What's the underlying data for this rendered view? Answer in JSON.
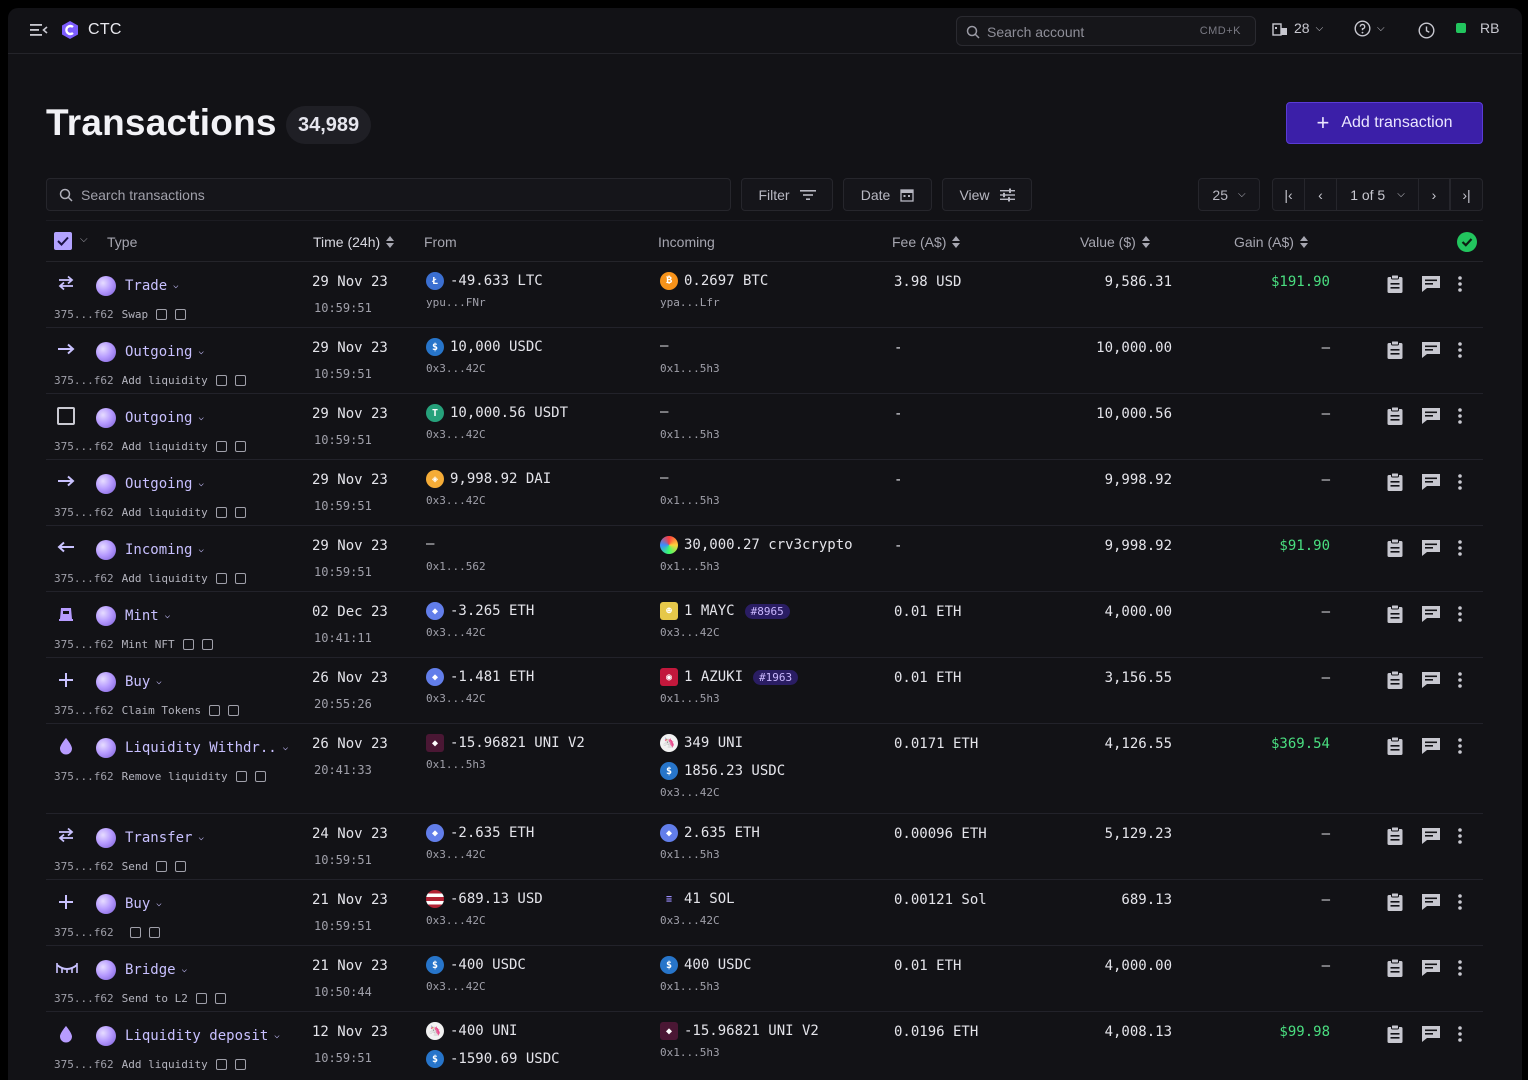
{
  "app": {
    "title": "CTC"
  },
  "topbar": {
    "search_placeholder": "Search account",
    "search_shortcut": "CMD+K",
    "notifications_count": "28",
    "user_initials": "RB"
  },
  "header": {
    "title": "Transactions",
    "count": "34,989",
    "add_label": "Add transaction"
  },
  "toolbar": {
    "search_placeholder": "Search transactions",
    "filter_label": "Filter",
    "date_label": "Date",
    "view_label": "View",
    "page_size": "25",
    "page_label": "1 of 5"
  },
  "columns": {
    "type": "Type",
    "time": "Time (24h)",
    "from": "From",
    "incoming": "Incoming",
    "fee": "Fee (A$)",
    "value": "Value ($)",
    "gain": "Gain (A$)"
  },
  "colors": {
    "accent": "#3b1fa8",
    "positive": "#4ade80",
    "type_text": "#c8c0ff"
  },
  "rows": [
    {
      "icon": "swap-arrows-icon",
      "type": "Trade",
      "hash": "375...f62",
      "label": "Swap",
      "date": "29 Nov 23",
      "time": "10:59:51",
      "from": [
        {
          "token": "ltc",
          "text": "-49.633 LTC"
        }
      ],
      "from_addr": "ypu...FNr",
      "incoming": [
        {
          "token": "btc",
          "text": "0.2697 BTC"
        }
      ],
      "incoming_addr": "ypa...Lfr",
      "fee": "3.98 USD",
      "value": "9,586.31",
      "gain": "$191.90",
      "gain_pos": true
    },
    {
      "icon": "arrow-right-icon",
      "type": "Outgoing",
      "hash": "375...f62",
      "label": "Add liquidity",
      "date": "29 Nov 23",
      "time": "10:59:51",
      "from": [
        {
          "token": "usdc",
          "text": "10,000 USDC"
        }
      ],
      "from_addr": "0x3...42C",
      "incoming": [
        {
          "token": "",
          "text": "–"
        }
      ],
      "incoming_addr": "0x1...5h3",
      "fee": "-",
      "value": "10,000.00",
      "gain": "–",
      "gain_pos": false
    },
    {
      "icon": "checkbox-icon",
      "type": "Outgoing",
      "hash": "375...f62",
      "label": "Add liquidity",
      "date": "29 Nov 23",
      "time": "10:59:51",
      "from": [
        {
          "token": "usdt",
          "text": "10,000.56 USDT"
        }
      ],
      "from_addr": "0x3...42C",
      "incoming": [
        {
          "token": "",
          "text": "–"
        }
      ],
      "incoming_addr": "0x1...5h3",
      "fee": "-",
      "value": "10,000.56",
      "gain": "–",
      "gain_pos": false
    },
    {
      "icon": "arrow-right-icon",
      "type": "Outgoing",
      "hash": "375...f62",
      "label": "Add liquidity",
      "date": "29 Nov 23",
      "time": "10:59:51",
      "from": [
        {
          "token": "dai",
          "text": "9,998.92 DAI"
        }
      ],
      "from_addr": "0x3...42C",
      "incoming": [
        {
          "token": "",
          "text": "–"
        }
      ],
      "incoming_addr": "0x1...5h3",
      "fee": "-",
      "value": "9,998.92",
      "gain": "–",
      "gain_pos": false
    },
    {
      "icon": "arrow-left-icon",
      "type": "Incoming",
      "hash": "375...f62",
      "label": "Add liquidity",
      "date": "29 Nov 23",
      "time": "10:59:51",
      "from": [
        {
          "token": "",
          "text": "–"
        }
      ],
      "from_addr": "0x1...562",
      "incoming": [
        {
          "token": "crv",
          "text": "30,000.27 crv3crypto"
        }
      ],
      "incoming_addr": "0x1...5h3",
      "fee": "-",
      "value": "9,998.92",
      "gain": "$91.90",
      "gain_pos": true
    },
    {
      "icon": "mint-icon",
      "type": "Mint",
      "hash": "375...f62",
      "label": "Mint NFT",
      "date": "02 Dec 23",
      "time": "10:41:11",
      "from": [
        {
          "token": "eth",
          "text": "-3.265 ETH"
        }
      ],
      "from_addr": "0x3...42C",
      "incoming": [
        {
          "token": "mayc",
          "text": "1 MAYC",
          "badge": "#8965"
        }
      ],
      "incoming_addr": "0x3...42C",
      "fee": "0.01 ETH",
      "value": "4,000.00",
      "gain": "–",
      "gain_pos": false
    },
    {
      "icon": "plus-icon",
      "type": "Buy",
      "hash": "375...f62",
      "label": "Claim Tokens",
      "date": "26 Nov 23",
      "time": "20:55:26",
      "from": [
        {
          "token": "eth",
          "text": "-1.481 ETH"
        }
      ],
      "from_addr": "0x3...42C",
      "incoming": [
        {
          "token": "azuki",
          "text": "1 AZUKI",
          "badge": "#1963"
        }
      ],
      "incoming_addr": "0x1...5h3",
      "fee": "0.01 ETH",
      "value": "3,156.55",
      "gain": "–",
      "gain_pos": false
    },
    {
      "icon": "drop-icon",
      "type": "Liquidity Withdr..",
      "hash": "375...f62",
      "label": "Remove liquidity",
      "date": "26 Nov 23",
      "time": "20:41:33",
      "from": [
        {
          "token": "univ2",
          "text": "-15.96821 UNI V2"
        }
      ],
      "from_addr": "0x1...5h3",
      "incoming": [
        {
          "token": "uni",
          "text": "349 UNI"
        },
        {
          "token": "usdc",
          "text": "1856.23 USDC"
        }
      ],
      "incoming_addr": "0x3...42C",
      "fee": "0.0171 ETH",
      "value": "4,126.55",
      "gain": "$369.54",
      "gain_pos": true
    },
    {
      "icon": "swap-arrows-icon",
      "type": "Transfer",
      "hash": "375...f62",
      "label": "Send",
      "date": "24 Nov 23",
      "time": "10:59:51",
      "from": [
        {
          "token": "eth",
          "text": "-2.635 ETH"
        }
      ],
      "from_addr": "0x3...42C",
      "incoming": [
        {
          "token": "eth",
          "text": "2.635 ETH"
        }
      ],
      "incoming_addr": "0x1...5h3",
      "fee": "0.00096 ETH",
      "value": "5,129.23",
      "gain": "–",
      "gain_pos": false
    },
    {
      "icon": "plus-icon",
      "type": "Buy",
      "hash": "375...f62",
      "label": "",
      "date": "21 Nov 23",
      "time": "10:59:51",
      "from": [
        {
          "token": "usd",
          "text": "-689.13 USD"
        }
      ],
      "from_addr": "0x3...42C",
      "incoming": [
        {
          "token": "sol",
          "text": "41 SOL"
        }
      ],
      "incoming_addr": "0x3...42C",
      "fee": "0.00121 Sol",
      "value": "689.13",
      "gain": "–",
      "gain_pos": false
    },
    {
      "icon": "bridge-icon",
      "type": "Bridge",
      "hash": "375...f62",
      "label": "Send to L2",
      "date": "21 Nov 23",
      "time": "10:50:44",
      "from": [
        {
          "token": "usdc",
          "text": "-400 USDC"
        }
      ],
      "from_addr": "0x3...42C",
      "incoming": [
        {
          "token": "usdc",
          "text": "400 USDC"
        }
      ],
      "incoming_addr": "0x1...5h3",
      "fee": "0.01 ETH",
      "value": "4,000.00",
      "gain": "–",
      "gain_pos": false
    },
    {
      "icon": "drop-icon",
      "type": "Liquidity deposit",
      "hash": "375...f62",
      "label": "Add liquidity",
      "date": "12 Nov 23",
      "time": "10:59:51",
      "from": [
        {
          "token": "uni",
          "text": "-400 UNI"
        },
        {
          "token": "usdc",
          "text": "-1590.69 USDC"
        }
      ],
      "from_addr": "",
      "incoming": [
        {
          "token": "univ2",
          "text": "-15.96821 UNI V2"
        }
      ],
      "incoming_addr": "0x1...5h3",
      "fee": "0.0196 ETH",
      "value": "4,008.13",
      "gain": "$99.98",
      "gain_pos": true
    }
  ]
}
